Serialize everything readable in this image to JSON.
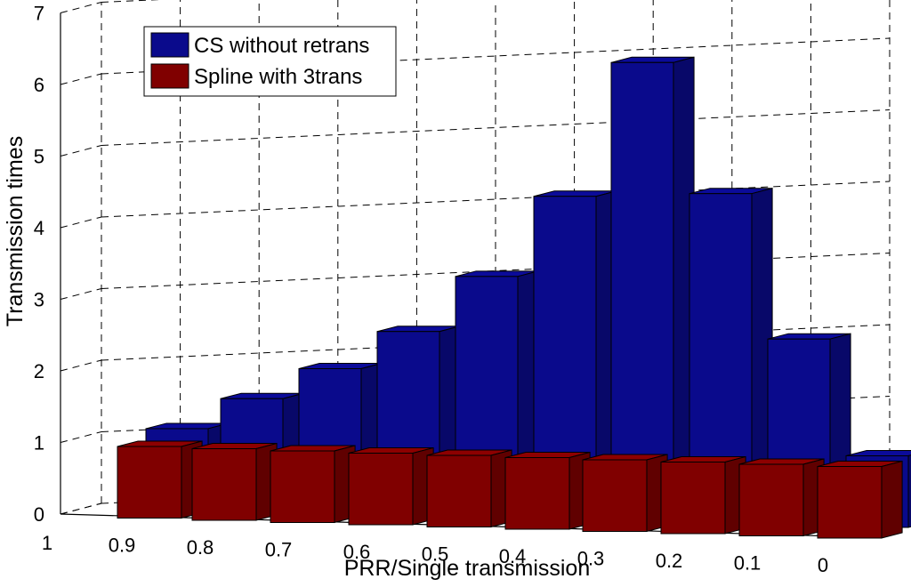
{
  "chart_data": {
    "type": "bar",
    "view": "3d",
    "xlabel": "PRR/Single transmission",
    "ylabel": "Transmission times",
    "x_tick_labels": [
      "1",
      "0.9",
      "0.8",
      "0.7",
      "0.6",
      "0.5",
      "0.4",
      "0.3",
      "0.2",
      "0.1",
      "0"
    ],
    "y_tick_labels": [
      "0",
      "1",
      "2",
      "3",
      "4",
      "5",
      "6",
      "7"
    ],
    "ylim": [
      0,
      7
    ],
    "grid": true,
    "legend_position": "top-left",
    "categories": [
      "0.9",
      "0.8",
      "0.7",
      "0.6",
      "0.5",
      "0.4",
      "0.3",
      "0.2",
      "0.1",
      "0"
    ],
    "series": [
      {
        "name": "CS without retrans",
        "color": "#0a0a8c",
        "values": [
          1.1,
          1.55,
          2.0,
          2.55,
          3.35,
          4.5,
          6.4,
          4.6,
          2.6,
          1.0
        ]
      },
      {
        "name": "Spline with 3trans",
        "color": "#800000",
        "values": [
          1.0,
          1.0,
          1.0,
          1.0,
          1.0,
          1.0,
          1.0,
          1.0,
          1.0,
          1.0
        ]
      }
    ]
  }
}
